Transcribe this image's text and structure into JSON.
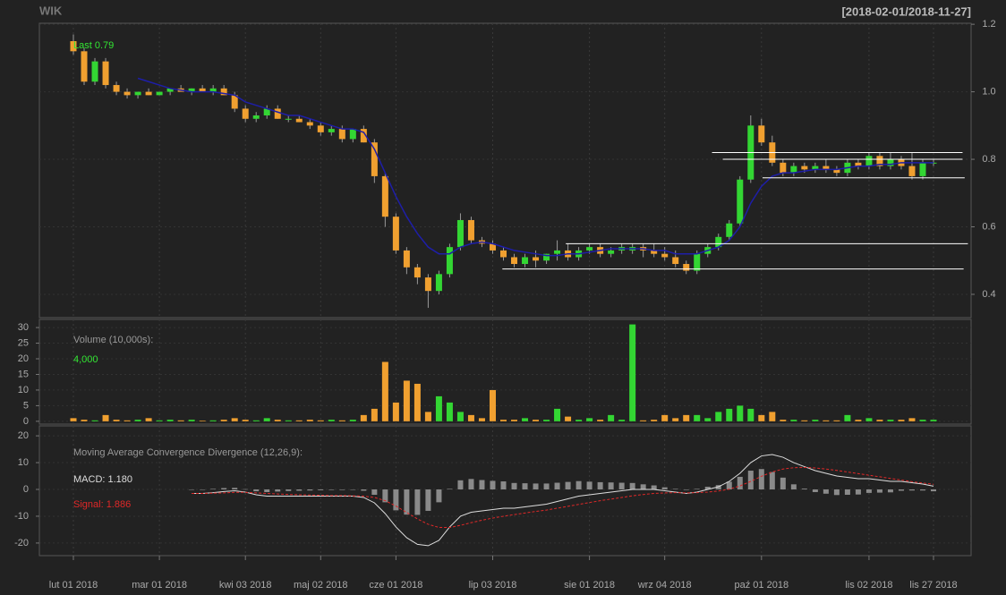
{
  "chart_data": [
    {
      "type": "candlestick",
      "title": "WIK",
      "subtitle": "[2018-02-01/2018-11-27]",
      "annotation": "Last 0.79",
      "up_color": "#33d633",
      "down_color": "#f0a030",
      "grid": true,
      "categories": [
        "lut 01 2018",
        null,
        null,
        null,
        null,
        null,
        null,
        null,
        "mar 01 2018",
        null,
        null,
        null,
        null,
        null,
        null,
        null,
        "kwi 03 2018",
        null,
        null,
        null,
        null,
        null,
        null,
        "maj 02 2018",
        null,
        null,
        null,
        null,
        null,
        null,
        "cze 01 2018",
        null,
        null,
        null,
        null,
        null,
        null,
        null,
        null,
        "lip 03 2018",
        null,
        null,
        null,
        null,
        null,
        null,
        null,
        null,
        "sie 01 2018",
        null,
        null,
        null,
        null,
        null,
        null,
        "wrz 04 2018",
        null,
        null,
        null,
        null,
        null,
        null,
        null,
        null,
        "paź 01 2018",
        null,
        null,
        null,
        null,
        null,
        null,
        null,
        null,
        null,
        "lis 02 2018",
        null,
        null,
        null,
        null,
        null,
        "lis 27 2018"
      ],
      "open": [
        1.15,
        1.12,
        1.03,
        1.09,
        1.02,
        1.0,
        0.99,
        1.0,
        0.99,
        1.0,
        1.01,
        1.0,
        1.01,
        1.0,
        1.01,
        0.99,
        0.95,
        0.92,
        0.93,
        0.95,
        0.92,
        0.92,
        0.91,
        0.9,
        0.88,
        0.89,
        0.86,
        0.89,
        0.85,
        0.75,
        0.63,
        0.53,
        0.48,
        0.45,
        0.41,
        0.46,
        0.54,
        0.62,
        0.56,
        0.55,
        0.53,
        0.51,
        0.49,
        0.51,
        0.5,
        0.52,
        0.53,
        0.51,
        0.53,
        0.54,
        0.52,
        0.53,
        0.53,
        0.54,
        0.53,
        0.52,
        0.51,
        0.49,
        0.47,
        0.52,
        0.54,
        0.57,
        0.61,
        0.74,
        0.9,
        0.85,
        0.79,
        0.76,
        0.78,
        0.77,
        0.78,
        0.77,
        0.76,
        0.79,
        0.78,
        0.81,
        0.78,
        0.8,
        0.78,
        0.75,
        0.79
      ],
      "high": [
        1.17,
        1.13,
        1.1,
        1.1,
        1.03,
        1.01,
        1.0,
        1.01,
        1.0,
        1.01,
        1.02,
        1.01,
        1.02,
        1.02,
        1.02,
        1.0,
        0.96,
        0.94,
        0.96,
        0.96,
        0.93,
        0.93,
        0.92,
        0.91,
        0.9,
        0.9,
        0.89,
        0.9,
        0.86,
        0.76,
        0.64,
        0.54,
        0.49,
        0.46,
        0.47,
        0.55,
        0.64,
        0.63,
        0.57,
        0.56,
        0.54,
        0.52,
        0.52,
        0.53,
        0.52,
        0.56,
        0.55,
        0.54,
        0.55,
        0.55,
        0.54,
        0.55,
        0.55,
        0.55,
        0.55,
        0.54,
        0.53,
        0.5,
        0.53,
        0.55,
        0.58,
        0.62,
        0.75,
        0.93,
        0.92,
        0.87,
        0.8,
        0.79,
        0.79,
        0.79,
        0.8,
        0.78,
        0.8,
        0.8,
        0.82,
        0.82,
        0.82,
        0.81,
        0.82,
        0.8,
        0.8
      ],
      "low": [
        1.11,
        1.02,
        1.02,
        1.01,
        0.99,
        0.98,
        0.98,
        0.99,
        0.99,
        0.99,
        1.0,
        0.99,
        1.0,
        0.99,
        0.99,
        0.94,
        0.91,
        0.91,
        0.92,
        0.92,
        0.91,
        0.91,
        0.89,
        0.87,
        0.87,
        0.85,
        0.85,
        0.85,
        0.73,
        0.6,
        0.52,
        0.46,
        0.43,
        0.36,
        0.4,
        0.45,
        0.53,
        0.55,
        0.54,
        0.52,
        0.5,
        0.48,
        0.48,
        0.48,
        0.49,
        0.5,
        0.5,
        0.5,
        0.52,
        0.51,
        0.51,
        0.52,
        0.52,
        0.51,
        0.51,
        0.5,
        0.48,
        0.46,
        0.46,
        0.51,
        0.53,
        0.56,
        0.6,
        0.73,
        0.84,
        0.78,
        0.75,
        0.75,
        0.76,
        0.76,
        0.76,
        0.75,
        0.75,
        0.77,
        0.77,
        0.77,
        0.77,
        0.77,
        0.74,
        0.74,
        0.78
      ],
      "close": [
        1.12,
        1.03,
        1.09,
        1.02,
        1.0,
        0.99,
        1.0,
        0.99,
        1.0,
        1.01,
        1.0,
        1.01,
        1.0,
        1.01,
        0.99,
        0.95,
        0.92,
        0.93,
        0.95,
        0.92,
        0.92,
        0.91,
        0.9,
        0.88,
        0.89,
        0.86,
        0.89,
        0.85,
        0.75,
        0.63,
        0.53,
        0.48,
        0.45,
        0.41,
        0.46,
        0.54,
        0.62,
        0.56,
        0.55,
        0.53,
        0.51,
        0.49,
        0.51,
        0.5,
        0.52,
        0.53,
        0.51,
        0.53,
        0.54,
        0.52,
        0.53,
        0.54,
        0.54,
        0.53,
        0.52,
        0.51,
        0.49,
        0.47,
        0.52,
        0.54,
        0.57,
        0.61,
        0.74,
        0.9,
        0.85,
        0.79,
        0.76,
        0.78,
        0.77,
        0.78,
        0.77,
        0.76,
        0.79,
        0.78,
        0.81,
        0.78,
        0.8,
        0.78,
        0.75,
        0.79,
        0.79
      ],
      "ma": {
        "color": "#1e1ea8",
        "values": [
          null,
          null,
          null,
          null,
          null,
          null,
          1.04,
          1.03,
          1.02,
          1.01,
          1.005,
          1.0,
          1.0,
          1.0,
          0.995,
          0.99,
          0.97,
          0.96,
          0.95,
          0.94,
          0.93,
          0.93,
          0.92,
          0.91,
          0.9,
          0.89,
          0.89,
          0.88,
          0.83,
          0.76,
          0.69,
          0.63,
          0.58,
          0.54,
          0.52,
          0.52,
          0.54,
          0.55,
          0.555,
          0.55,
          0.54,
          0.53,
          0.525,
          0.52,
          0.515,
          0.515,
          0.52,
          0.52,
          0.525,
          0.53,
          0.535,
          0.535,
          0.535,
          0.535,
          0.53,
          0.53,
          0.52,
          0.52,
          0.52,
          0.53,
          0.54,
          0.56,
          0.6,
          0.67,
          0.72,
          0.75,
          0.76,
          0.76,
          0.765,
          0.77,
          0.77,
          0.77,
          0.775,
          0.78,
          0.78,
          0.785,
          0.785,
          0.79,
          0.79,
          0.79,
          0.79
        ]
      },
      "levels": [
        {
          "value": 0.82,
          "from": 59.4,
          "to": 82.7
        },
        {
          "value": 0.8,
          "from": 60.4,
          "to": 82.7
        },
        {
          "value": 0.745,
          "from": 64.1,
          "to": 82.9
        },
        {
          "value": 0.55,
          "from": 45.8,
          "to": 83.2
        },
        {
          "value": 0.475,
          "from": 39.9,
          "to": 82.8
        }
      ],
      "level_color": "#ffffff",
      "ylim": [
        0.331,
        1.203
      ],
      "yticks": [
        0.4,
        0.6,
        0.8,
        {
          "value": 1,
          "label": "1.0"
        },
        1.2
      ]
    },
    {
      "type": "bar",
      "title": "Volume (10,000s):",
      "annotation": "4,000",
      "values": [
        1,
        0.5,
        0.3,
        2,
        0.5,
        0.3,
        0.5,
        1,
        0.3,
        0.5,
        0.3,
        0.5,
        0.2,
        0.3,
        0.5,
        1,
        0.5,
        0.3,
        1,
        0.5,
        0.3,
        0.3,
        0.5,
        0.3,
        0.5,
        0.3,
        0.5,
        2,
        4,
        19,
        6,
        13,
        12,
        3,
        8,
        6,
        3,
        2,
        1,
        10,
        0.5,
        0.5,
        1,
        0.5,
        0.5,
        4,
        1.5,
        0.5,
        1,
        0.5,
        2,
        0.5,
        31,
        0.3,
        0.5,
        2,
        1,
        2,
        2,
        1,
        3,
        4,
        5,
        4,
        2,
        3,
        0.5,
        0.5,
        0.3,
        0.5,
        0.3,
        0.3,
        2,
        0.5,
        1,
        0.5,
        0.5,
        0.5,
        1,
        0.5,
        0.5
      ],
      "ylim": [
        -0.9,
        32.6
      ],
      "yticks": [
        0,
        5,
        10,
        15,
        20,
        25,
        30
      ],
      "grid": true
    },
    {
      "type": "line",
      "title": "Moving Average Convergence Divergence (12,26,9):",
      "macd_label": "MACD: 1.180",
      "signal_label": "Signal: 1.886",
      "series": [
        {
          "color": "#dddddd",
          "values": [
            null,
            null,
            null,
            null,
            null,
            null,
            null,
            null,
            null,
            null,
            null,
            -1.5,
            -1.5,
            -1.2,
            -0.8,
            -0.5,
            -1,
            -2,
            -2.5,
            -2.5,
            -2.5,
            -2.5,
            -2.5,
            -2.5,
            -2.5,
            -2.5,
            -2.5,
            -3,
            -5,
            -9,
            -14,
            -18,
            -20.5,
            -21,
            -19,
            -14,
            -10,
            -8.5,
            -8,
            -7.5,
            -7,
            -7,
            -6.5,
            -6,
            -5.5,
            -4.5,
            -3.5,
            -2.5,
            -2,
            -1.5,
            -1,
            -0.5,
            0,
            0,
            0,
            -0.5,
            -1,
            -1.5,
            -1,
            0,
            1,
            3,
            6,
            10,
            12.5,
            13,
            12,
            10,
            8.5,
            7,
            6,
            5,
            4.5,
            4,
            4,
            3.5,
            3,
            3,
            2.5,
            2,
            1.2
          ]
        },
        {
          "color": "#e02828",
          "dashed": true,
          "values": [
            null,
            null,
            null,
            null,
            null,
            null,
            null,
            null,
            null,
            null,
            null,
            -1.5,
            -1.5,
            -1.4,
            -1.3,
            -1.1,
            -1.1,
            -1.3,
            -1.5,
            -1.7,
            -1.9,
            -2,
            -2.1,
            -2.2,
            -2.3,
            -2.3,
            -2.4,
            -2.5,
            -3,
            -4.2,
            -6.2,
            -8.6,
            -11,
            -13,
            -14.2,
            -14.2,
            -13.4,
            -12.4,
            -11.5,
            -10.7,
            -10,
            -9.4,
            -8.8,
            -8.2,
            -7.7,
            -7,
            -6.3,
            -5.6,
            -4.9,
            -4.2,
            -3.6,
            -3,
            -2.4,
            -1.9,
            -1.5,
            -1.3,
            -1.2,
            -1.3,
            -1.2,
            -1,
            -0.6,
            0.1,
            1.3,
            3,
            4.9,
            6.5,
            7.6,
            8.1,
            8.2,
            8,
            7.6,
            7.1,
            6.5,
            5.9,
            5.3,
            4.7,
            4.1,
            3.5,
            2.9,
            2.4,
            1.9
          ]
        }
      ],
      "histogram": {
        "color": "#8a8a8a",
        "values": [
          null,
          null,
          null,
          null,
          null,
          null,
          null,
          null,
          null,
          null,
          null,
          0,
          0,
          0.2,
          0.5,
          0.6,
          0.1,
          -0.7,
          -1,
          -0.8,
          -0.6,
          -0.5,
          -0.4,
          -0.3,
          -0.2,
          -0.2,
          -0.1,
          -0.5,
          -2,
          -4.8,
          -7.8,
          -9.4,
          -9.5,
          -8,
          -4.8,
          0.2,
          3.4,
          3.9,
          3.5,
          3.2,
          3,
          2.4,
          2.3,
          2.2,
          2.2,
          2.5,
          2.8,
          3.1,
          2.9,
          2.7,
          2.6,
          2.5,
          2.4,
          1.9,
          1.5,
          0.8,
          0.2,
          -0.2,
          0.2,
          1,
          1.6,
          2.9,
          4.7,
          7,
          7.6,
          6.5,
          4.4,
          1.9,
          0.3,
          -1,
          -1.6,
          -2.1,
          -2,
          -1.9,
          -1.3,
          -1.2,
          -1.1,
          -0.5,
          -0.4,
          -0.4,
          -0.7
        ]
      },
      "ylim": [
        -24.7,
        23.7
      ],
      "yticks": [
        -20,
        -10,
        0,
        10,
        20
      ],
      "grid": true
    }
  ]
}
